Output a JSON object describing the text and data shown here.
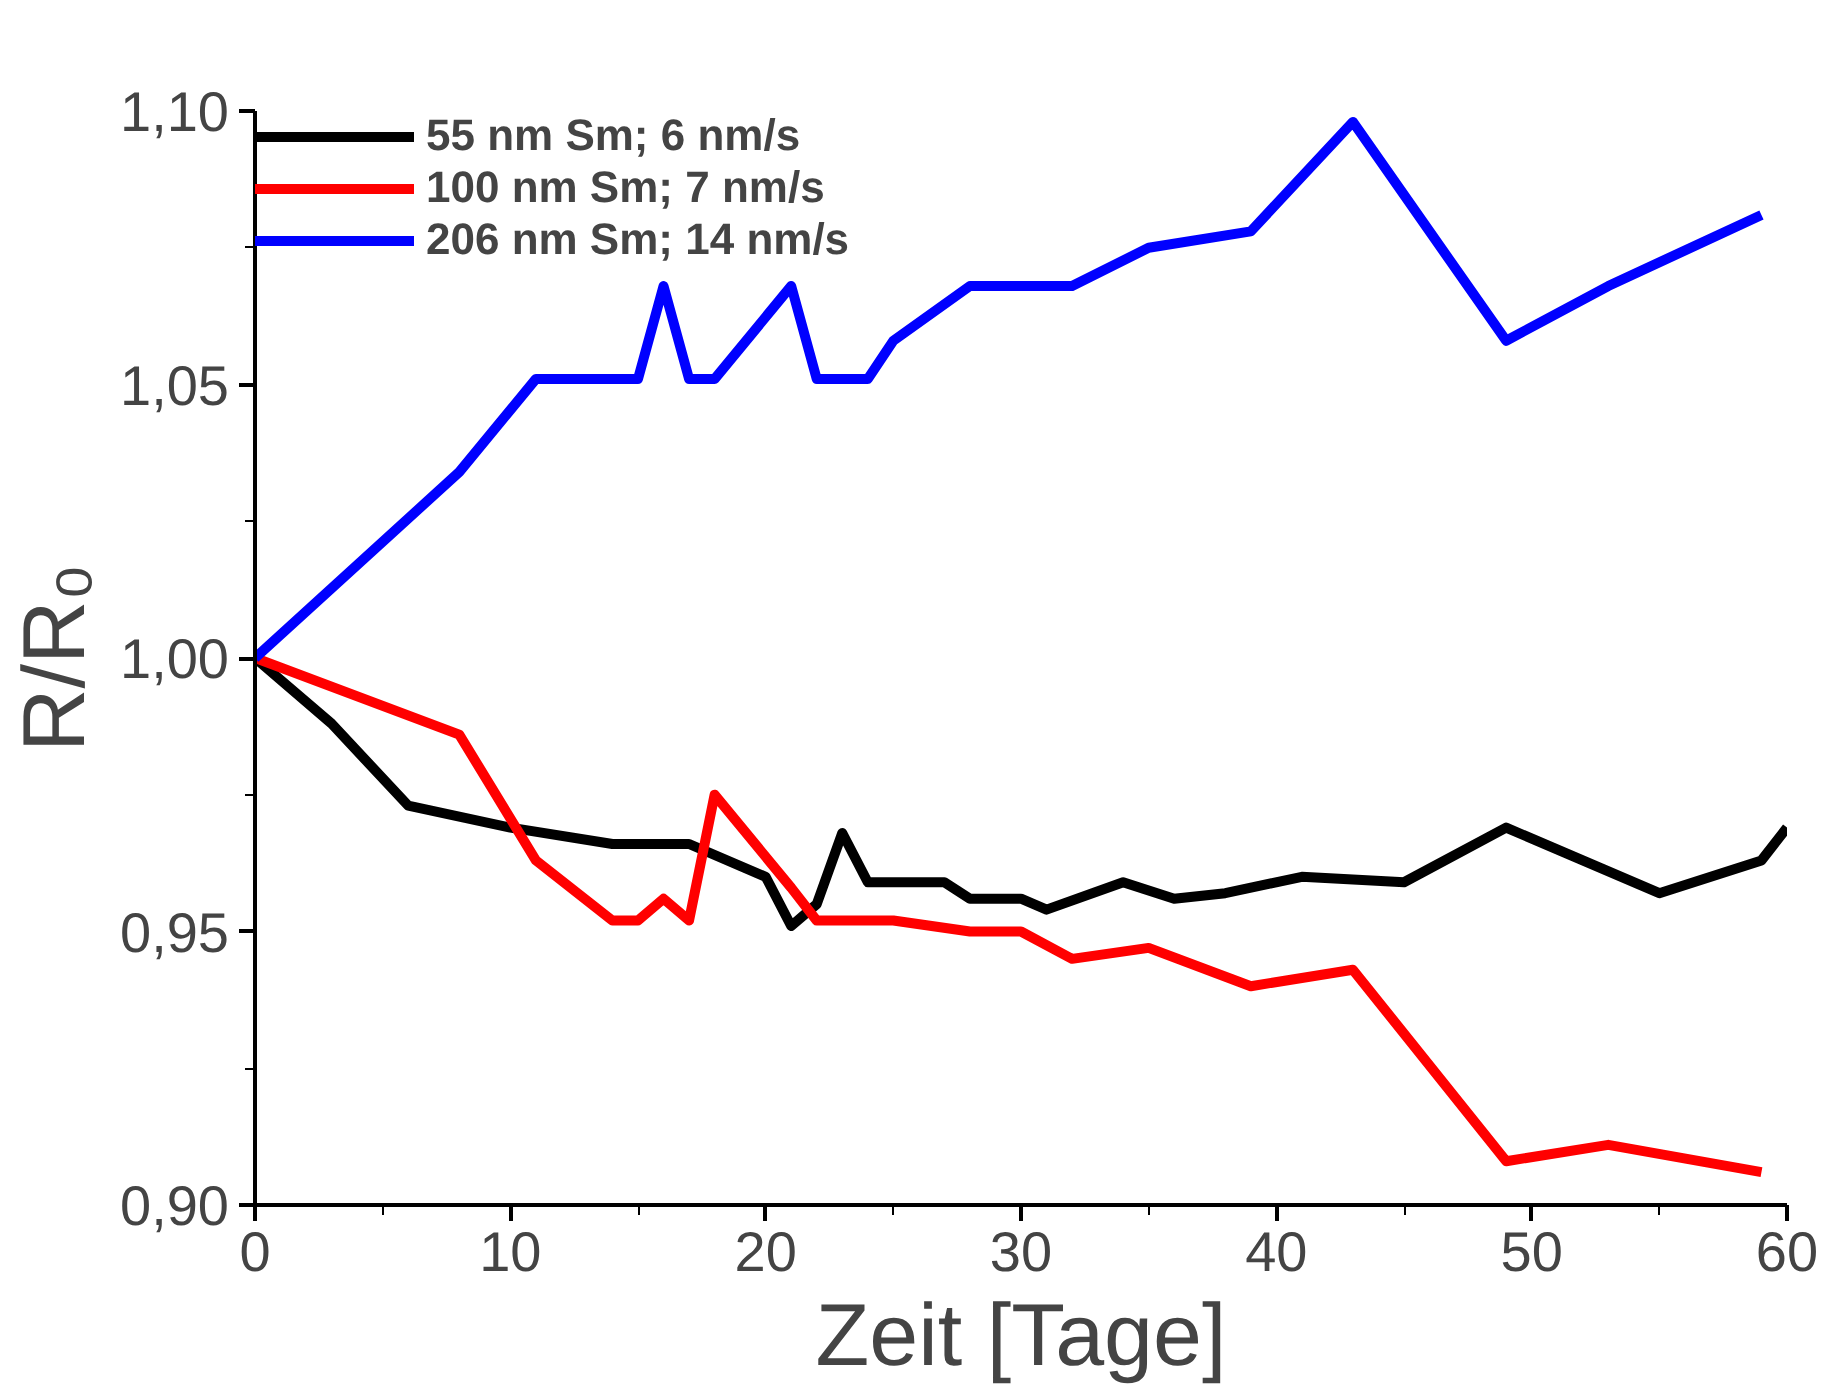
{
  "chart_data": {
    "type": "line",
    "xlabel": "Zeit [Tage]",
    "ylabel": "R/R₀",
    "xlim": [
      0,
      60
    ],
    "ylim": [
      0.9,
      1.1
    ],
    "xticks": [
      0,
      10,
      20,
      30,
      40,
      50,
      60
    ],
    "yticks": [
      {
        "value": 0.9,
        "label": "0,90"
      },
      {
        "value": 0.95,
        "label": "0,95"
      },
      {
        "value": 1.0,
        "label": "1,00"
      },
      {
        "value": 1.05,
        "label": "1,05"
      },
      {
        "value": 1.1,
        "label": "1,10"
      }
    ],
    "grid": false,
    "legend": "top left",
    "marker": "none",
    "line_style": "solid",
    "series": [
      {
        "name": "55 nm Sm; 6 nm/s",
        "color": "#000000",
        "x": [
          0,
          3,
          6,
          10,
          14,
          17,
          20,
          21,
          22,
          23,
          24,
          27,
          28,
          30,
          31,
          34,
          36,
          38,
          41,
          45,
          49,
          55,
          59,
          60
        ],
        "values": [
          1.0,
          0.988,
          0.973,
          0.969,
          0.966,
          0.966,
          0.96,
          0.951,
          0.955,
          0.968,
          0.959,
          0.959,
          0.956,
          0.956,
          0.954,
          0.959,
          0.956,
          0.957,
          0.96,
          0.959,
          0.969,
          0.957,
          0.963,
          0.969
        ]
      },
      {
        "name": "100 nm Sm; 7 nm/s",
        "color": "#ff0000",
        "x": [
          0,
          8,
          11,
          14,
          15,
          16,
          17,
          18,
          21,
          22,
          25,
          28,
          30,
          32,
          35,
          39,
          43,
          49,
          53,
          59
        ],
        "values": [
          1.0,
          0.986,
          0.963,
          0.952,
          0.952,
          0.956,
          0.952,
          0.975,
          0.958,
          0.952,
          0.952,
          0.95,
          0.95,
          0.945,
          0.947,
          0.94,
          0.943,
          0.908,
          0.911,
          0.906
        ]
      },
      {
        "name": "206 nm Sm; 14 nm/s",
        "color": "#0000ff",
        "x": [
          0,
          8,
          11,
          15,
          16,
          17,
          18,
          21,
          22,
          24,
          25,
          28,
          32,
          35,
          39,
          43,
          49,
          53,
          59
        ],
        "values": [
          1.0,
          1.034,
          1.051,
          1.051,
          1.068,
          1.051,
          1.051,
          1.068,
          1.051,
          1.051,
          1.058,
          1.068,
          1.068,
          1.075,
          1.078,
          1.098,
          1.058,
          1.068,
          1.081
        ]
      }
    ]
  }
}
